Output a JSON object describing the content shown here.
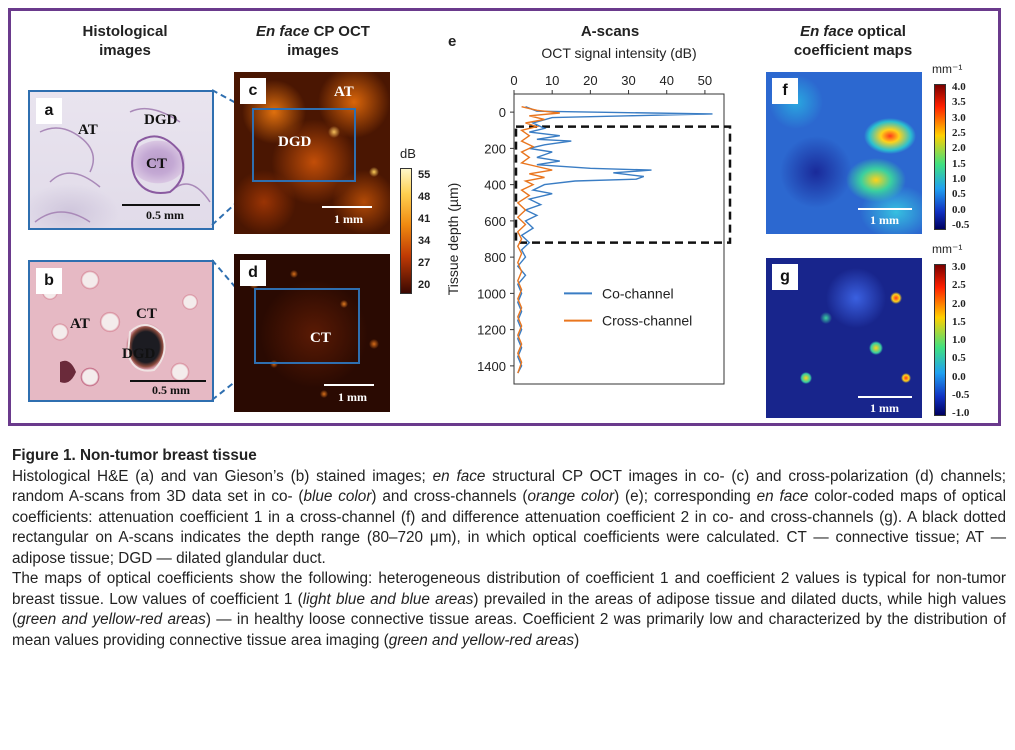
{
  "headers": {
    "histo": "Histological images",
    "oct_italic": "En face",
    "oct_rest": "CP OCT images",
    "e_label": "e",
    "ascans": "A-scans",
    "maps_italic": "En face",
    "maps_rest": "optical coefficient maps"
  },
  "panels": {
    "a": {
      "label": "a",
      "tissues": [
        "AT",
        "DGD",
        "CT"
      ],
      "scale": "0.5 mm"
    },
    "b": {
      "label": "b",
      "tissues": [
        "AT",
        "CT",
        "DGD"
      ],
      "scale": "0.5 mm"
    },
    "c": {
      "label": "c",
      "tissues": [
        "AT",
        "DGD"
      ],
      "scale": "1 mm"
    },
    "d": {
      "label": "d",
      "tissues": [
        "CT"
      ],
      "scale": "1 mm"
    },
    "f": {
      "label": "f",
      "scale": "1 mm",
      "unit": "mm⁻¹",
      "ticks": [
        "4.0",
        "3.5",
        "3.0",
        "2.5",
        "2.0",
        "1.5",
        "1.0",
        "0.5",
        "0.0",
        "-0.5"
      ]
    },
    "g": {
      "label": "g",
      "scale": "1 mm",
      "unit": "mm⁻¹",
      "ticks": [
        "3.0",
        "2.5",
        "2.0",
        "1.5",
        "1.0",
        "0.5",
        "0.0",
        "-0.5",
        "-1.0"
      ]
    }
  },
  "db_colorbar": {
    "unit": "dB",
    "ticks": [
      "55",
      "48",
      "41",
      "34",
      "27",
      "20"
    ]
  },
  "chart_data": {
    "type": "line",
    "title": "A-scans",
    "xlabel": "OCT signal intensity (dB)",
    "ylabel": "Tissue depth (µm)",
    "xlim": [
      0,
      55
    ],
    "ylim": [
      1500,
      -100
    ],
    "xticks": [
      "0",
      "10",
      "20",
      "30",
      "40",
      "50"
    ],
    "yticks": [
      "0",
      "200",
      "400",
      "600",
      "800",
      "1000",
      "1200",
      "1400"
    ],
    "legend_position": "center-right",
    "depth_range_box": {
      "y_start": 80,
      "y_end": 720
    },
    "series": [
      {
        "name": "Co-channel",
        "color": "#3a7dc4",
        "points": [
          [
            3,
            -30
          ],
          [
            6,
            -5
          ],
          [
            20,
            0
          ],
          [
            52,
            10
          ],
          [
            30,
            20
          ],
          [
            10,
            30
          ],
          [
            5,
            60
          ],
          [
            8,
            90
          ],
          [
            4,
            110
          ],
          [
            12,
            130
          ],
          [
            6,
            150
          ],
          [
            15,
            160
          ],
          [
            8,
            180
          ],
          [
            4,
            200
          ],
          [
            10,
            220
          ],
          [
            6,
            250
          ],
          [
            12,
            270
          ],
          [
            6,
            290
          ],
          [
            20,
            310
          ],
          [
            36,
            320
          ],
          [
            26,
            335
          ],
          [
            34,
            355
          ],
          [
            32,
            370
          ],
          [
            16,
            380
          ],
          [
            8,
            400
          ],
          [
            5,
            430
          ],
          [
            10,
            450
          ],
          [
            4,
            480
          ],
          [
            7,
            510
          ],
          [
            3,
            540
          ],
          [
            6,
            570
          ],
          [
            3,
            600
          ],
          [
            5,
            640
          ],
          [
            2,
            680
          ],
          [
            4,
            720
          ],
          [
            2,
            760
          ],
          [
            3,
            800
          ],
          [
            1,
            850
          ],
          [
            3,
            900
          ],
          [
            1,
            950
          ],
          [
            2,
            1000
          ],
          [
            1,
            1050
          ],
          [
            2,
            1100
          ],
          [
            1,
            1150
          ],
          [
            2,
            1200
          ],
          [
            1,
            1250
          ],
          [
            2,
            1300
          ],
          [
            1,
            1350
          ],
          [
            2,
            1400
          ],
          [
            1,
            1440
          ]
        ]
      },
      {
        "name": "Cross-channel",
        "color": "#e9761f",
        "points": [
          [
            2,
            -30
          ],
          [
            6,
            -10
          ],
          [
            12,
            5
          ],
          [
            4,
            20
          ],
          [
            8,
            40
          ],
          [
            3,
            60
          ],
          [
            6,
            80
          ],
          [
            2,
            100
          ],
          [
            4,
            130
          ],
          [
            2,
            160
          ],
          [
            5,
            190
          ],
          [
            2,
            220
          ],
          [
            4,
            250
          ],
          [
            2,
            280
          ],
          [
            6,
            300
          ],
          [
            10,
            320
          ],
          [
            4,
            340
          ],
          [
            8,
            360
          ],
          [
            3,
            380
          ],
          [
            5,
            400
          ],
          [
            2,
            430
          ],
          [
            4,
            460
          ],
          [
            1,
            500
          ],
          [
            3,
            540
          ],
          [
            1,
            580
          ],
          [
            3,
            620
          ],
          [
            1,
            660
          ],
          [
            2,
            700
          ],
          [
            1,
            740
          ],
          [
            2,
            780
          ],
          [
            1,
            830
          ],
          [
            2,
            880
          ],
          [
            1,
            930
          ],
          [
            2,
            980
          ],
          [
            1,
            1030
          ],
          [
            2,
            1080
          ],
          [
            1,
            1130
          ],
          [
            2,
            1180
          ],
          [
            1,
            1230
          ],
          [
            2,
            1280
          ],
          [
            1,
            1330
          ],
          [
            2,
            1380
          ],
          [
            1,
            1440
          ]
        ]
      }
    ]
  },
  "caption": {
    "title": "Figure 1. Non-tumor breast tissue",
    "p1": [
      {
        "t": "Histological H&E (a) and van Gieson’s (b) stained images; ",
        "i": false
      },
      {
        "t": "en face",
        "i": true
      },
      {
        "t": " structural CP OCT images in co- (c) and cross-polarization (d) channels; random A-scans from 3D data set in co- (",
        "i": false
      },
      {
        "t": "blue color",
        "i": true
      },
      {
        "t": ") and cross-channels (",
        "i": false
      },
      {
        "t": "orange color",
        "i": true
      },
      {
        "t": ") (e); corresponding ",
        "i": false
      },
      {
        "t": "en face",
        "i": true
      },
      {
        "t": " color-coded maps of optical coefficients: attenuation coefficient 1 in a cross-channel (f) and difference attenuation coefficient 2 in co- and cross-channels (g). A black dotted rectangular on A-scans indicates the depth range (80–720 μm), in which optical coefficients were calculated. CT — connective tissue; AT — adipose tissue; DGD — dilated glandular duct.",
        "i": false
      }
    ],
    "p2": [
      {
        "t": "The maps of optical coefficients show the following: heterogeneous distribution of coefficient 1 and coefficient 2 values is typical for non-tumor breast tissue. Low values of coefficient 1 (",
        "i": false
      },
      {
        "t": "light blue and blue areas",
        "i": true
      },
      {
        "t": ") prevailed in the areas of adipose tissue and dilated ducts, while high values (",
        "i": false
      },
      {
        "t": "green and yellow-red areas",
        "i": true
      },
      {
        "t": ") — in healthy loose connective tissue areas. Coefficient 2 was primarily low and characterized by the distribution of mean values providing connective tissue area imaging (",
        "i": false
      },
      {
        "t": "green and yellow-red areas",
        "i": true
      },
      {
        "t": ")",
        "i": false
      }
    ]
  }
}
